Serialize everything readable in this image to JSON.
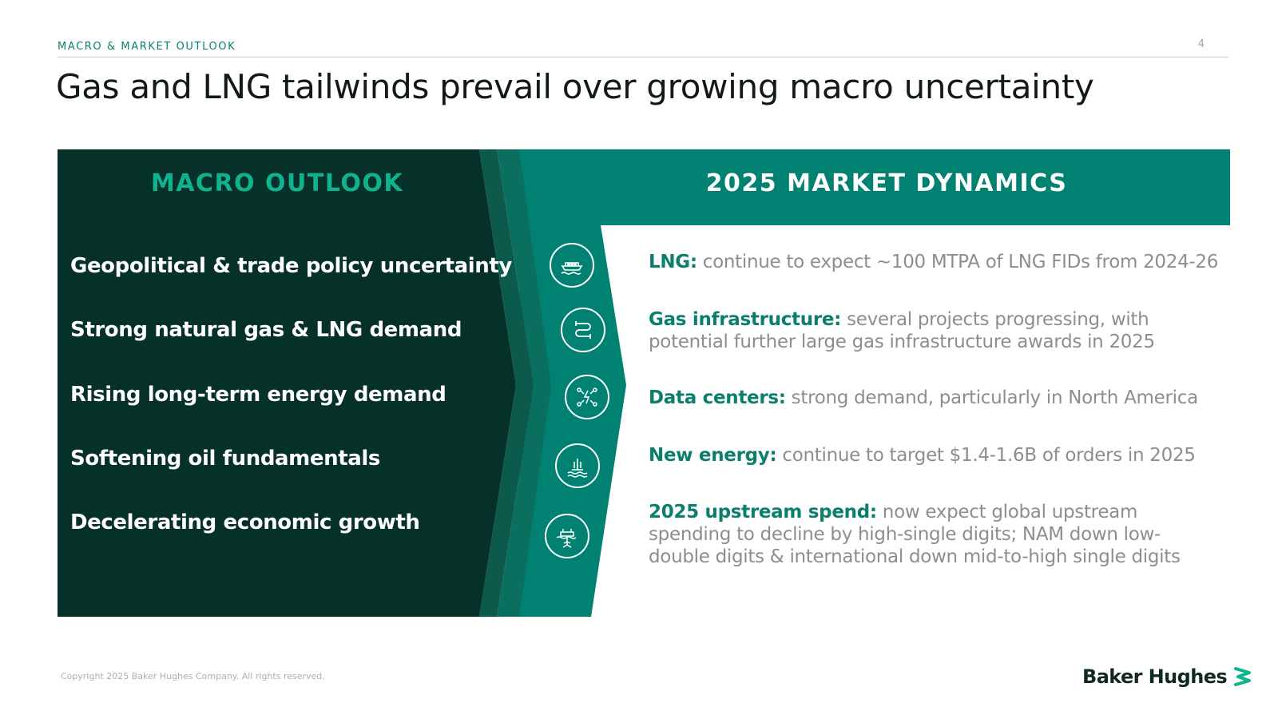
{
  "header": {
    "eyebrow": "MACRO & MARKET OUTLOOK",
    "page_number": "4",
    "title": "Gas and LNG tailwinds prevail over growing macro uncertainty"
  },
  "macro_outlook": {
    "heading": "MACRO OUTLOOK",
    "items": [
      "Geopolitical & trade policy uncertainty",
      "Strong natural gas & LNG demand",
      "Rising long-term energy demand",
      "Softening oil fundamentals",
      "Decelerating economic growth"
    ]
  },
  "market_dynamics": {
    "heading": "2025 MARKET DYNAMICS",
    "items": [
      {
        "label": "LNG:",
        "text": " continue to expect ~100 MTPA of LNG FIDs from 2024-26",
        "icon": "lng-ship-icon"
      },
      {
        "label": "Gas infrastructure:",
        "text": " several projects progressing, with potential further large gas infrastructure awards in 2025",
        "icon": "pipeline-icon"
      },
      {
        "label": "Data centers:",
        "text": " strong demand, particularly in North America",
        "icon": "data-center-power-icon"
      },
      {
        "label": "New energy:",
        "text": " continue to target $1.4-1.6B of orders in 2025",
        "icon": "geothermal-icon"
      },
      {
        "label": "2025 upstream spend:",
        "text": " now expect global upstream spending to decline by high-single digits; NAM down low-double digits & international down mid-to-high single digits",
        "icon": "offshore-rig-icon"
      }
    ]
  },
  "footer": {
    "copyright": "Copyright 2025 Baker Hughes Company. All rights reserved.",
    "logo_text": "Baker Hughes"
  },
  "colors": {
    "dark_green": "#063129",
    "mid_green": "#0b5a4c",
    "teal": "#0a7d6b",
    "bright_teal": "#008171",
    "accent": "#10b38f"
  }
}
